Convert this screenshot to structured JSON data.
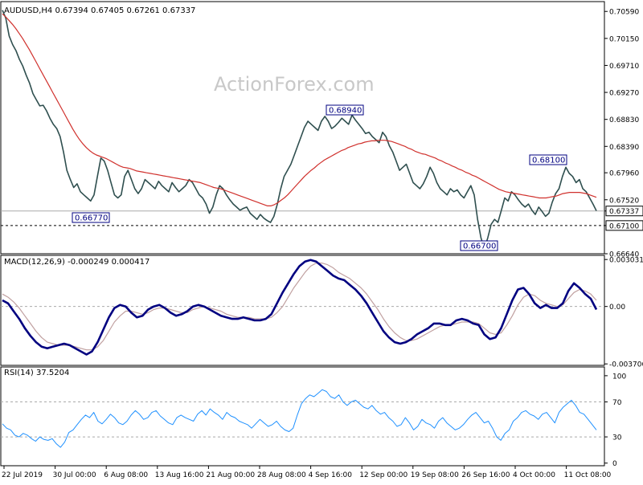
{
  "watermark": "ActionForex.com",
  "colors": {
    "price": "#2f4f4f",
    "ma": "#d0312d",
    "macd": "#000080",
    "signal": "#c0a0a0",
    "grid": "#aaaaaa",
    "box": "#000080"
  },
  "chart_data": [
    {
      "type": "line",
      "title": "AUDUSD,H4  0.67394 0.67405 0.67261 0.67337",
      "ylim": [
        0.6664,
        0.7075
      ],
      "yticks": [
        "0.70590",
        "0.70150",
        "0.69710",
        "0.69270",
        "0.68830",
        "0.68390",
        "0.67960",
        "0.67520",
        "0.67337",
        "0.67100",
        "0.66640"
      ],
      "levels": [
        0.67337,
        0.671
      ],
      "annotations": [
        {
          "text": "0.68940",
          "value": 0.6894
        },
        {
          "text": "0.66770",
          "value": 0.6677
        },
        {
          "text": "0.66700",
          "value": 0.667
        },
        {
          "text": "0.68100",
          "value": 0.681
        }
      ],
      "series": [
        {
          "values": [
            0.7061,
            0.7048,
            0.7019,
            0.7005,
            0.6995,
            0.6981,
            0.697,
            0.6955,
            0.6942,
            0.6925,
            0.6915,
            0.6905,
            0.6906,
            0.6897,
            0.6885,
            0.6875,
            0.6868,
            0.6855,
            0.683,
            0.68,
            0.6785,
            0.6772,
            0.6778,
            0.6765,
            0.676,
            0.6755,
            0.675,
            0.676,
            0.679,
            0.682,
            0.6815,
            0.68,
            0.678,
            0.676,
            0.6755,
            0.676,
            0.679,
            0.68,
            0.6785,
            0.677,
            0.6762,
            0.677,
            0.6785,
            0.678,
            0.6775,
            0.677,
            0.6782,
            0.6775,
            0.677,
            0.6765,
            0.678,
            0.6772,
            0.6765,
            0.677,
            0.6775,
            0.6785,
            0.678,
            0.677,
            0.676,
            0.6755,
            0.6745,
            0.673,
            0.674,
            0.676,
            0.6775,
            0.677,
            0.676,
            0.6752,
            0.6745,
            0.674,
            0.6735,
            0.6738,
            0.674,
            0.673,
            0.6725,
            0.672,
            0.6728,
            0.6722,
            0.6718,
            0.6715,
            0.6725,
            0.6745,
            0.677,
            0.679,
            0.68,
            0.681,
            0.6825,
            0.684,
            0.6855,
            0.687,
            0.688,
            0.6875,
            0.687,
            0.6865,
            0.688,
            0.6888,
            0.688,
            0.6868,
            0.6872,
            0.6878,
            0.6885,
            0.688,
            0.6875,
            0.689,
            0.6882,
            0.6875,
            0.6868,
            0.686,
            0.6862,
            0.6855,
            0.685,
            0.6845,
            0.6862,
            0.6855,
            0.684,
            0.683,
            0.6815,
            0.68,
            0.6805,
            0.681,
            0.6795,
            0.678,
            0.6775,
            0.677,
            0.6778,
            0.679,
            0.6805,
            0.6795,
            0.678,
            0.677,
            0.6765,
            0.676,
            0.677,
            0.6765,
            0.6768,
            0.676,
            0.6755,
            0.6765,
            0.6775,
            0.676,
            0.672,
            0.669,
            0.6672,
            0.669,
            0.6712,
            0.672,
            0.6715,
            0.6735,
            0.6755,
            0.675,
            0.6765,
            0.676,
            0.6752,
            0.6745,
            0.674,
            0.6745,
            0.6735,
            0.6728,
            0.674,
            0.6733,
            0.6725,
            0.673,
            0.6748,
            0.6762,
            0.677,
            0.679,
            0.6805,
            0.6795,
            0.679,
            0.678,
            0.6785,
            0.677,
            0.6765,
            0.6755,
            0.6745,
            0.6734
          ]
        },
        {
          "values": [
            0.7055,
            0.705,
            0.7044,
            0.7038,
            0.7031,
            0.7023,
            0.7015,
            0.7006,
            0.6997,
            0.6987,
            0.6977,
            0.6967,
            0.6957,
            0.6947,
            0.6937,
            0.6927,
            0.6917,
            0.6907,
            0.6897,
            0.6887,
            0.6877,
            0.6867,
            0.6858,
            0.685,
            0.6843,
            0.6837,
            0.6832,
            0.6828,
            0.6825,
            0.6823,
            0.6821,
            0.6819,
            0.6816,
            0.6813,
            0.681,
            0.6807,
            0.6805,
            0.6804,
            0.6803,
            0.6801,
            0.6799,
            0.6798,
            0.6797,
            0.6796,
            0.6795,
            0.6794,
            0.6793,
            0.6792,
            0.6791,
            0.679,
            0.6789,
            0.6788,
            0.6787,
            0.6786,
            0.6785,
            0.6784,
            0.6783,
            0.6782,
            0.6781,
            0.678,
            0.6778,
            0.6776,
            0.6774,
            0.6772,
            0.6771,
            0.677,
            0.6768,
            0.6766,
            0.6764,
            0.6762,
            0.676,
            0.6758,
            0.6756,
            0.6754,
            0.6752,
            0.675,
            0.6748,
            0.6746,
            0.6744,
            0.6742,
            0.6742,
            0.6744,
            0.6747,
            0.6751,
            0.6755,
            0.676,
            0.6766,
            0.6772,
            0.6778,
            0.6784,
            0.679,
            0.6795,
            0.68,
            0.6804,
            0.6809,
            0.6813,
            0.6817,
            0.682,
            0.6823,
            0.6826,
            0.6829,
            0.6832,
            0.6834,
            0.6837,
            0.6839,
            0.6841,
            0.6843,
            0.6844,
            0.6846,
            0.6847,
            0.6848,
            0.6848,
            0.6849,
            0.6849,
            0.6849,
            0.6848,
            0.6847,
            0.6845,
            0.6843,
            0.6841,
            0.6839,
            0.6836,
            0.6834,
            0.6831,
            0.6829,
            0.6827,
            0.6826,
            0.6824,
            0.6822,
            0.682,
            0.6817,
            0.6815,
            0.6812,
            0.681,
            0.6807,
            0.6805,
            0.6802,
            0.68,
            0.6797,
            0.6795,
            0.6792,
            0.679,
            0.6787,
            0.6784,
            0.6781,
            0.6778,
            0.6775,
            0.6772,
            0.6769,
            0.6767,
            0.6765,
            0.6764,
            0.6763,
            0.6762,
            0.6761,
            0.676,
            0.6759,
            0.6758,
            0.6757,
            0.6756,
            0.6755,
            0.6755,
            0.6755,
            0.6756,
            0.6757,
            0.6758,
            0.676,
            0.6762,
            0.6763,
            0.6764,
            0.6764,
            0.6764,
            0.6764,
            0.6763,
            0.6762,
            0.676,
            0.6758,
            0.6756
          ]
        }
      ]
    },
    {
      "type": "line",
      "title": "MACD(12,26,9) -0.000249 0.000417",
      "ylim": [
        -0.0038,
        0.0033
      ],
      "yticks": [
        "0.003031",
        "0.00",
        "-0.003706"
      ],
      "series": [
        {
          "values": [
            0.0004,
            0.0002,
            -0.0003,
            -0.0008,
            -0.0014,
            -0.0019,
            -0.0023,
            -0.0026,
            -0.0027,
            -0.0026,
            -0.0025,
            -0.0024,
            -0.0025,
            -0.0027,
            -0.0029,
            -0.0031,
            -0.0029,
            -0.0023,
            -0.0015,
            -0.0007,
            -0.0001,
            0.0001,
            0.0,
            -0.0004,
            -0.0007,
            -0.0006,
            -0.0002,
            0.0,
            0.0001,
            -0.0001,
            -0.0004,
            -0.0006,
            -0.0005,
            -0.0003,
            0.0,
            0.0001,
            0.0,
            -0.0002,
            -0.0004,
            -0.0006,
            -0.0007,
            -0.0008,
            -0.0008,
            -0.0007,
            -0.0008,
            -0.0009,
            -0.0009,
            -0.0008,
            -0.0005,
            0.0002,
            0.0009,
            0.0015,
            0.0021,
            0.0026,
            0.0029,
            0.003,
            0.0029,
            0.0026,
            0.0023,
            0.002,
            0.0018,
            0.0017,
            0.0014,
            0.0011,
            0.0007,
            0.0002,
            -0.0004,
            -0.001,
            -0.0016,
            -0.002,
            -0.0023,
            -0.0024,
            -0.0023,
            -0.0021,
            -0.0018,
            -0.0016,
            -0.0014,
            -0.0011,
            -0.0011,
            -0.0012,
            -0.0012,
            -0.0009,
            -0.0008,
            -0.0009,
            -0.0011,
            -0.0012,
            -0.0018,
            -0.0021,
            -0.002,
            -0.0014,
            -0.0005,
            0.0004,
            0.0011,
            0.0012,
            0.0008,
            0.0002,
            -0.0001,
            0.0001,
            -0.0001,
            -0.0001,
            0.0002,
            0.001,
            0.0015,
            0.0012,
            0.0008,
            0.0005,
            -0.0002
          ]
        },
        {
          "values": [
            0.0008,
            0.0006,
            0.0003,
            -0.0001,
            -0.0006,
            -0.0011,
            -0.0016,
            -0.002,
            -0.0023,
            -0.0024,
            -0.0025,
            -0.0025,
            -0.0025,
            -0.0026,
            -0.0027,
            -0.0028,
            -0.0028,
            -0.0026,
            -0.0022,
            -0.0016,
            -0.001,
            -0.0006,
            -0.0003,
            -0.0003,
            -0.0004,
            -0.0005,
            -0.0004,
            -0.0002,
            -0.0001,
            -0.0001,
            -0.0002,
            -0.0003,
            -0.0004,
            -0.0004,
            -0.0002,
            -0.0001,
            0.0,
            -0.0001,
            -0.0002,
            -0.0003,
            -0.0005,
            -0.0006,
            -0.0007,
            -0.0007,
            -0.0007,
            -0.0008,
            -0.0008,
            -0.0008,
            -0.0007,
            -0.0004,
            0.0,
            0.0006,
            0.0012,
            0.0017,
            0.0022,
            0.0026,
            0.0028,
            0.0028,
            0.0027,
            0.0025,
            0.0022,
            0.002,
            0.0018,
            0.0015,
            0.0012,
            0.0008,
            0.0003,
            -0.0002,
            -0.0008,
            -0.0013,
            -0.0017,
            -0.002,
            -0.0022,
            -0.0022,
            -0.0021,
            -0.0019,
            -0.0017,
            -0.0015,
            -0.0013,
            -0.0012,
            -0.0012,
            -0.0011,
            -0.001,
            -0.001,
            -0.001,
            -0.0011,
            -0.0014,
            -0.0017,
            -0.0018,
            -0.0017,
            -0.0012,
            -0.0006,
            0.0001,
            0.0006,
            0.0008,
            0.0007,
            0.0004,
            0.0002,
            0.0001,
            0.0,
            0.0001,
            0.0005,
            0.0009,
            0.0011,
            0.001,
            0.0008,
            0.0004
          ]
        }
      ]
    },
    {
      "type": "line",
      "title": "RSI(14) 37.5204",
      "ylim": [
        0,
        100
      ],
      "yticks": [
        "100",
        "70",
        "30",
        "0"
      ],
      "levels": [
        70,
        30
      ],
      "series": [
        {
          "values": [
            45,
            40,
            38,
            32,
            30,
            34,
            32,
            28,
            25,
            30,
            27,
            26,
            28,
            22,
            18,
            24,
            35,
            38,
            44,
            50,
            55,
            52,
            58,
            48,
            45,
            50,
            56,
            52,
            46,
            44,
            48,
            55,
            60,
            56,
            50,
            52,
            58,
            60,
            54,
            50,
            46,
            44,
            52,
            55,
            52,
            50,
            48,
            56,
            60,
            55,
            62,
            58,
            55,
            50,
            58,
            54,
            52,
            48,
            46,
            44,
            40,
            45,
            50,
            46,
            42,
            44,
            48,
            42,
            38,
            36,
            40,
            55,
            68,
            74,
            78,
            76,
            80,
            84,
            82,
            76,
            74,
            78,
            70,
            66,
            70,
            72,
            68,
            64,
            62,
            66,
            60,
            56,
            58,
            52,
            48,
            42,
            44,
            52,
            46,
            38,
            42,
            50,
            46,
            44,
            40,
            48,
            52,
            46,
            42,
            38,
            40,
            44,
            50,
            55,
            58,
            52,
            46,
            48,
            40,
            30,
            26,
            34,
            38,
            48,
            52,
            58,
            60,
            56,
            54,
            50,
            56,
            58,
            52,
            46,
            58,
            64,
            68,
            72,
            66,
            58,
            56,
            50,
            44,
            38
          ]
        }
      ]
    }
  ],
  "x_labels": [
    "22 Jul 2019",
    "30 Jul 00:00",
    "6 Aug 08:00",
    "13 Aug 16:00",
    "21 Aug 00:00",
    "28 Aug 08:00",
    "4 Sep 16:00",
    "12 Sep 00:00",
    "19 Sep 08:00",
    "26 Sep 16:00",
    "4 Oct 00:00",
    "11 Oct 08:00"
  ]
}
